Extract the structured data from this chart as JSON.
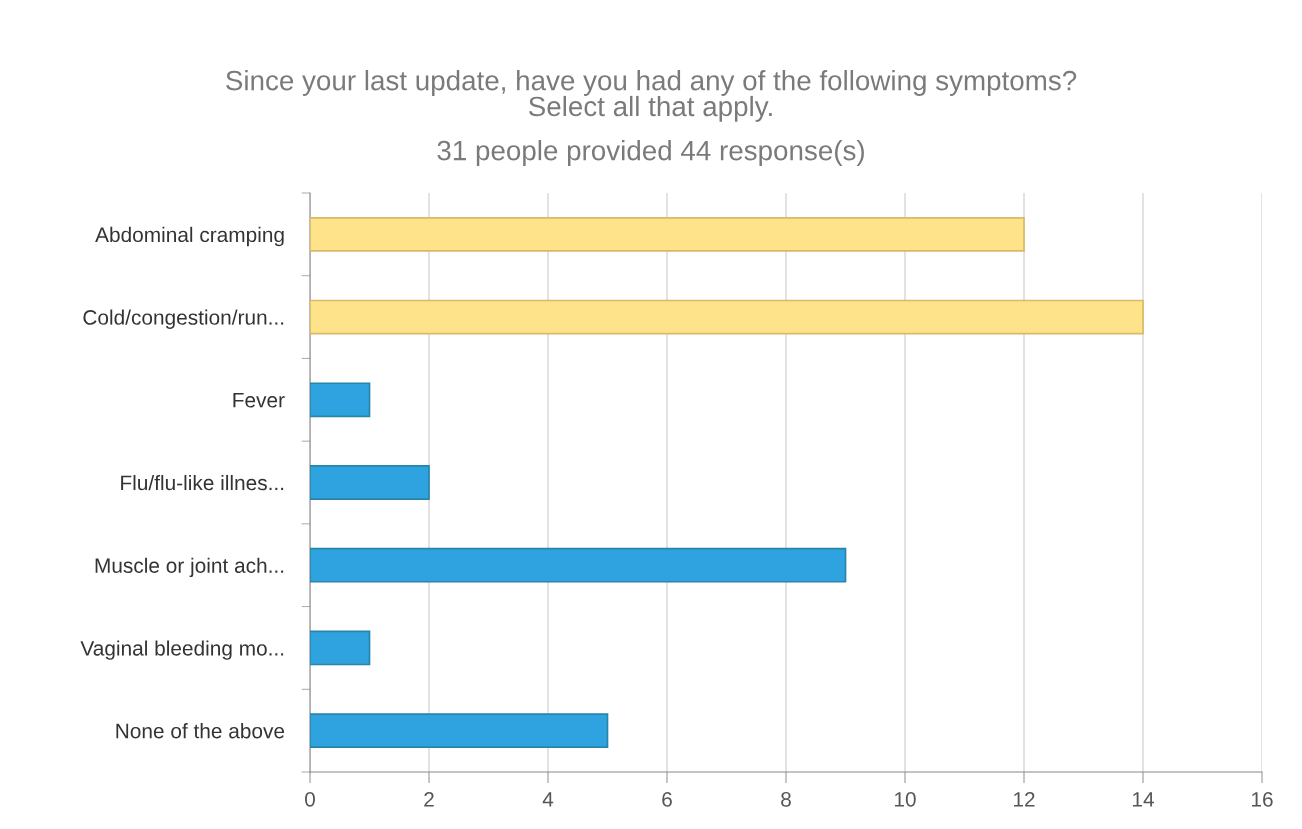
{
  "chart_data": {
    "type": "bar",
    "orientation": "horizontal",
    "title": "Since your last update, have you had any of the following symptoms?\nSelect all that apply.",
    "subtitle": "31 people provided 44 response(s)",
    "categories": [
      "Abdominal cramping",
      "Cold/congestion/run...",
      "Fever",
      "Flu/flu-like illnes...",
      "Muscle or joint ach...",
      "Vaginal bleeding mo...",
      "None of the above"
    ],
    "values": [
      12,
      14,
      1,
      2,
      9,
      1,
      5
    ],
    "colors": [
      "#ffe38a",
      "#ffe38a",
      "#2ea3e0",
      "#2ea3e0",
      "#2ea3e0",
      "#2ea3e0",
      "#2ea3e0"
    ],
    "xlim": [
      0,
      16
    ],
    "xticks": [
      0,
      2,
      4,
      6,
      8,
      10,
      12,
      14,
      16
    ],
    "grid": "x"
  }
}
